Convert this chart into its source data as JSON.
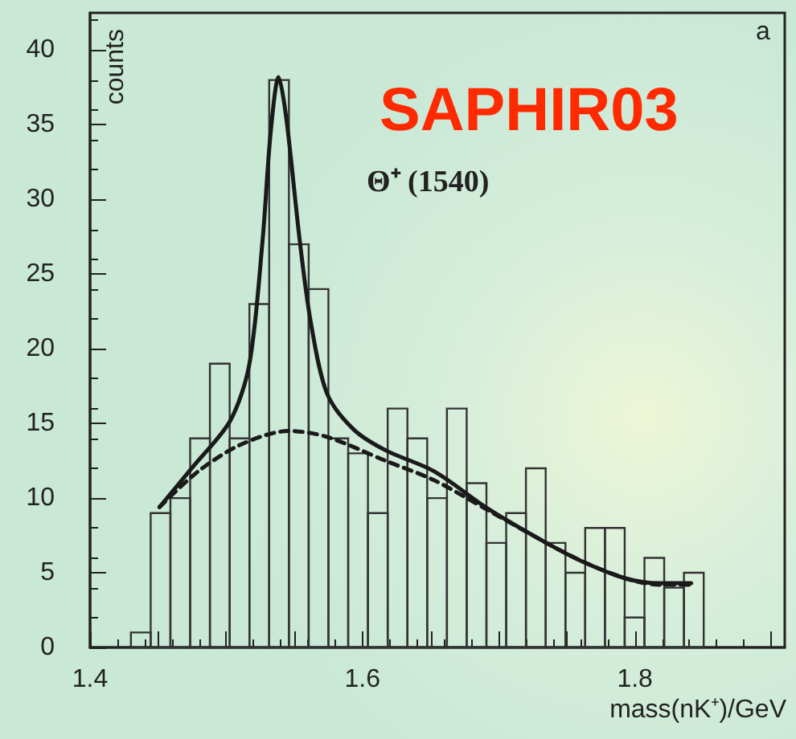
{
  "chart_data": {
    "type": "histogram",
    "xlabel": "mass(nK⁺)/GeV",
    "ylabel": "counts",
    "annotations": [
      "a",
      "SAPHIR03",
      "Θ⁺ (1540)"
    ],
    "xlim": [
      1.4,
      1.91
    ],
    "ylim": [
      0,
      42.5
    ],
    "xticks": [
      1.4,
      {
        "value": 1.45,
        "label": null
      },
      {
        "value": 1.5,
        "label": null
      },
      {
        "value": 1.55,
        "label": null
      },
      1.6,
      {
        "value": 1.65,
        "label": null
      },
      {
        "value": 1.7,
        "label": null
      },
      {
        "value": 1.75,
        "label": null
      },
      1.8,
      {
        "value": 1.85,
        "label": null
      },
      {
        "value": 1.9,
        "label": null
      }
    ],
    "yticks": [
      0,
      5,
      10,
      15,
      20,
      25,
      30,
      35,
      40
    ],
    "grid": false,
    "series": [
      {
        "color": "#333333",
        "bins": [
          1.43,
          1.4445,
          1.459,
          1.4735,
          1.488,
          1.5025,
          1.517,
          1.5315,
          1.546,
          1.5605,
          1.575,
          1.5895,
          1.604,
          1.6185,
          1.633,
          1.6475,
          1.662,
          1.6765,
          1.691,
          1.7055,
          1.72,
          1.7345,
          1.749,
          1.7635,
          1.778,
          1.7925,
          1.807,
          1.8215,
          1.836,
          1.8505
        ],
        "values": [
          1,
          9,
          10,
          14,
          19,
          14,
          23,
          38,
          27,
          24,
          14,
          13,
          9,
          16,
          14,
          10,
          16,
          11,
          7,
          9,
          12,
          7,
          5,
          8,
          8,
          2,
          6,
          4,
          5
        ]
      },
      {
        "type": "line",
        "color": "#1a1a1a",
        "line_style": "solid",
        "x": [
          1.451,
          1.4755,
          1.503,
          1.517,
          1.5266,
          1.5325,
          1.5384,
          1.544,
          1.554,
          1.562,
          1.574,
          1.5935,
          1.617,
          1.6525,
          1.692,
          1.735,
          1.7626,
          1.794,
          1.8177,
          1.8413
        ],
        "values": [
          9.4,
          12.1,
          15.2,
          19,
          27.2,
          34.4,
          38.2,
          35.5,
          27.2,
          21.8,
          17,
          14.6,
          13.2,
          11.8,
          9.3,
          7.0,
          5.7,
          4.6,
          4.3,
          4.3
        ]
      },
      {
        "type": "line",
        "color": "#1a1a1a",
        "line_style": "dashed",
        "x": [
          1.451,
          1.4795,
          1.511,
          1.546,
          1.574,
          1.617,
          1.6525,
          1.692,
          1.735,
          1.763,
          1.794,
          1.818,
          1.841
        ],
        "values": [
          9.4,
          11.8,
          13.6,
          14.5,
          14.1,
          12.5,
          11.2,
          9.2,
          7.0,
          5.7,
          4.6,
          4.2,
          4.2
        ]
      }
    ]
  }
}
